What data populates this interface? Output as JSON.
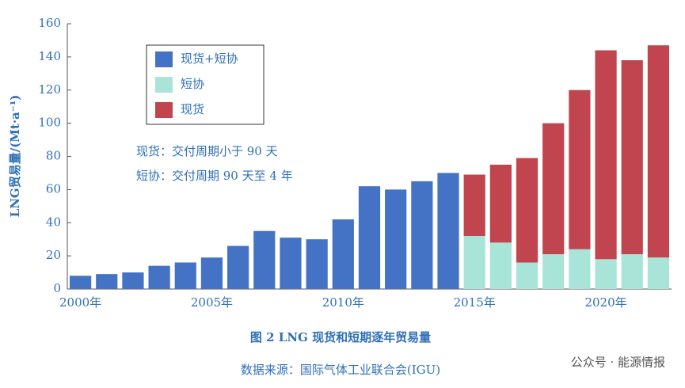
{
  "chart_data": {
    "type": "bar",
    "stacked": true,
    "y_label": "LNG贸易量/(Mt·a⁻¹)",
    "caption": "图 2 LNG 现货和短期逐年贸易量",
    "source": "数据来源：国际气体工业联合会(IGU)",
    "watermark": "公众号 · 能源情报",
    "annotations": [
      "现货：交付周期小于 90 天",
      "短协：交付周期 90 天至 4 年"
    ],
    "categories": [
      "2000年",
      null,
      null,
      null,
      null,
      "2005年",
      null,
      null,
      null,
      null,
      "2010年",
      null,
      null,
      null,
      null,
      "2015年",
      null,
      null,
      null,
      null,
      "2020年",
      null,
      null
    ],
    "series": [
      {
        "name": "现货+短协",
        "color": "#4472c4",
        "values": [
          8,
          9,
          10,
          14,
          16,
          19,
          26,
          35,
          31,
          30,
          42,
          62,
          60,
          65,
          70,
          null,
          null,
          null,
          null,
          null,
          null,
          null,
          null
        ]
      },
      {
        "name": "短协",
        "color": "#a8e4d8",
        "values": [
          null,
          null,
          null,
          null,
          null,
          null,
          null,
          null,
          null,
          null,
          null,
          null,
          null,
          null,
          null,
          32,
          28,
          16,
          21,
          24,
          18,
          21,
          19
        ]
      },
      {
        "name": "现货",
        "color": "#c0454f",
        "values": [
          null,
          null,
          null,
          null,
          null,
          null,
          null,
          null,
          null,
          null,
          null,
          null,
          null,
          null,
          null,
          37,
          47,
          63,
          79,
          96,
          126,
          117,
          128
        ]
      }
    ],
    "ylim": [
      0,
      160
    ],
    "yticks": [
      0,
      20,
      40,
      60,
      80,
      100,
      120,
      140,
      160
    ],
    "grid": false,
    "legend": "upper left"
  }
}
